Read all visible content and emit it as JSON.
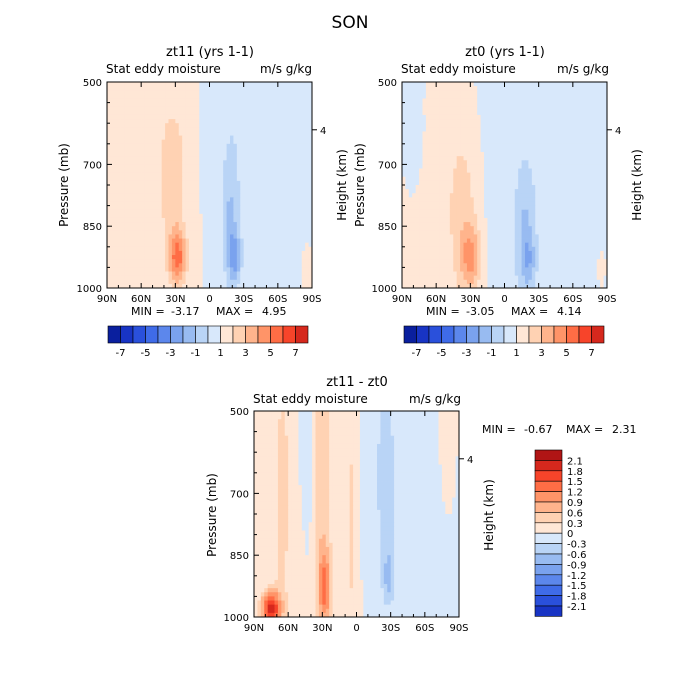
{
  "page_title": "SON",
  "palette_colors": {
    "pos": [
      "#ffe7d6",
      "#ffd2b3",
      "#ffb48c",
      "#ff9468",
      "#ff6d45",
      "#f7442a",
      "#d6281d",
      "#b01515",
      "#860b0b"
    ],
    "neg": [
      "#d8e8fb",
      "#b9d4f6",
      "#98bbf1",
      "#7aa2ee",
      "#5c87ec",
      "#3f6be8",
      "#2a50db",
      "#1834c4",
      "#0a1f9e"
    ],
    "frame": "#000000"
  },
  "chart_data": [
    {
      "type": "heatmap",
      "title": "zt11 (yrs 1-1)",
      "subtitle_left": "Stat eddy moisture",
      "subtitle_right": "m/s g/kg",
      "ylabel": "Pressure (mb)",
      "ylabel_right": "Height (km)",
      "x_ticks": [
        "90N",
        "60N",
        "30N",
        "0",
        "30S",
        "60S",
        "90S"
      ],
      "x_values": [
        90,
        60,
        30,
        0,
        -30,
        -60,
        -90
      ],
      "y_ticks": [
        "500",
        "700",
        "850",
        "1000"
      ],
      "y_values": [
        500,
        700,
        850,
        1000
      ],
      "y_right_ticks": [
        "4"
      ],
      "ylim": [
        500,
        1000
      ],
      "min_label": "MIN =",
      "min_value": "-3.17",
      "max_label": "MAX =",
      "max_value": "4.95",
      "features": [
        {
          "lat": 70,
          "p": 560,
          "slat": 12,
          "sp": 260,
          "amp": 0.8
        },
        {
          "lat": 40,
          "p": 740,
          "slat": 10,
          "sp": 220,
          "amp": 0.7
        },
        {
          "lat": 30,
          "p": 730,
          "slat": 7,
          "sp": 110,
          "amp": 1.5
        },
        {
          "lat": 28,
          "p": 925,
          "slat": 5,
          "sp": 45,
          "amp": 4.3
        },
        {
          "lat": 12,
          "p": 930,
          "slat": 5,
          "sp": 40,
          "amp": 0.7
        },
        {
          "lat": -20,
          "p": 640,
          "slat": 10,
          "sp": 200,
          "amp": -0.6
        },
        {
          "lat": -18,
          "p": 840,
          "slat": 5,
          "sp": 110,
          "amp": -1.7
        },
        {
          "lat": -22,
          "p": 925,
          "slat": 4,
          "sp": 45,
          "amp": -2.6
        },
        {
          "lat": 0,
          "p": 930,
          "slat": 4,
          "sp": 40,
          "amp": -1.0
        },
        {
          "lat": -55,
          "p": 760,
          "slat": 22,
          "sp": 350,
          "amp": -0.45
        },
        {
          "lat": -85,
          "p": 950,
          "slat": 3,
          "sp": 40,
          "amp": 0.5
        }
      ]
    },
    {
      "type": "heatmap",
      "title": "zt0 (yrs 1-1)",
      "subtitle_left": "Stat eddy moisture",
      "subtitle_right": "m/s g/kg",
      "ylabel": "Pressure (mb)",
      "ylabel_right": "Height (km)",
      "x_ticks": [
        "90N",
        "60N",
        "30N",
        "0",
        "30S",
        "60S",
        "90S"
      ],
      "x_values": [
        90,
        60,
        30,
        0,
        -30,
        -60,
        -90
      ],
      "y_ticks": [
        "500",
        "700",
        "850",
        "1000"
      ],
      "y_values": [
        500,
        700,
        850,
        1000
      ],
      "y_right_ticks": [
        "4"
      ],
      "ylim": [
        500,
        1000
      ],
      "min_label": "MIN =",
      "min_value": "-3.05",
      "max_label": "MAX =",
      "max_value": "4.14",
      "features": [
        {
          "lat": 55,
          "p": 760,
          "slat": 20,
          "sp": 220,
          "amp": 0.6
        },
        {
          "lat": 35,
          "p": 820,
          "slat": 10,
          "sp": 170,
          "amp": 1.2
        },
        {
          "lat": 30,
          "p": 925,
          "slat": 6,
          "sp": 55,
          "amp": 2.8
        },
        {
          "lat": 60,
          "p": 540,
          "slat": 6,
          "sp": 50,
          "amp": 0.4
        },
        {
          "lat": -18,
          "p": 880,
          "slat": 6,
          "sp": 120,
          "amp": -1.9
        },
        {
          "lat": -22,
          "p": 930,
          "slat": 4,
          "sp": 40,
          "amp": -1.4
        },
        {
          "lat": 0,
          "p": 700,
          "slat": 30,
          "sp": 300,
          "amp": -0.45
        },
        {
          "lat": -60,
          "p": 750,
          "slat": 25,
          "sp": 350,
          "amp": -0.5
        },
        {
          "lat": 75,
          "p": 620,
          "slat": 10,
          "sp": 200,
          "amp": -0.4
        },
        {
          "lat": -85,
          "p": 950,
          "slat": 3,
          "sp": 40,
          "amp": 0.5
        }
      ]
    },
    {
      "type": "heatmap",
      "title": "zt11 - zt0",
      "subtitle_left": "Stat eddy moisture",
      "subtitle_right": "m/s g/kg",
      "ylabel": "Pressure (mb)",
      "ylabel_right": "Height (km)",
      "x_ticks": [
        "90N",
        "60N",
        "30N",
        "0",
        "30S",
        "60S",
        "90S"
      ],
      "x_values": [
        90,
        60,
        30,
        0,
        -30,
        -60,
        -90
      ],
      "y_ticks": [
        "500",
        "700",
        "850",
        "1000"
      ],
      "y_values": [
        500,
        700,
        850,
        1000
      ],
      "y_right_ticks": [
        "4"
      ],
      "ylim": [
        500,
        1000
      ],
      "min_label": "MIN =",
      "min_value": "-0.67",
      "max_label": "MAX =",
      "max_value": "2.31",
      "features": [
        {
          "lat": 65,
          "p": 700,
          "slat": 6,
          "sp": 280,
          "amp": 0.4
        },
        {
          "lat": 30,
          "p": 700,
          "slat": 6,
          "sp": 260,
          "amp": 0.55
        },
        {
          "lat": 28,
          "p": 930,
          "slat": 4,
          "sp": 60,
          "amp": 1.1
        },
        {
          "lat": 75,
          "p": 980,
          "slat": 6,
          "sp": 30,
          "amp": 1.9
        },
        {
          "lat": 5,
          "p": 780,
          "slat": 4,
          "sp": 300,
          "amp": 0.35
        },
        {
          "lat": 50,
          "p": 850,
          "slat": 4,
          "sp": 150,
          "amp": 0.3
        },
        {
          "lat": 45,
          "p": 640,
          "slat": 4,
          "sp": 150,
          "amp": -0.35
        },
        {
          "lat": -25,
          "p": 650,
          "slat": 8,
          "sp": 250,
          "amp": -0.35
        },
        {
          "lat": -28,
          "p": 900,
          "slat": 3,
          "sp": 40,
          "amp": -0.6
        },
        {
          "lat": -60,
          "p": 760,
          "slat": 25,
          "sp": 300,
          "amp": -0.15
        },
        {
          "lat": -80,
          "p": 580,
          "slat": 5,
          "sp": 120,
          "amp": 0.3
        }
      ]
    }
  ],
  "colorbar_small": {
    "levels": [
      -8,
      -7,
      -6,
      -5,
      -4,
      -3,
      -2,
      -1,
      0,
      1,
      2,
      3,
      4,
      5,
      6,
      7,
      8
    ],
    "labels": [
      "-7",
      "-5",
      "-3",
      "-1",
      "1",
      "3",
      "5",
      "7"
    ]
  },
  "colorbar_diff": {
    "levels": [
      2.4,
      2.1,
      1.8,
      1.5,
      1.2,
      0.9,
      0.6,
      0.3,
      0,
      -0.3,
      -0.6,
      -0.9,
      -1.2,
      -1.5,
      -1.8,
      -2.1,
      -2.4
    ],
    "labels": [
      "2.1",
      "1.8",
      "1.5",
      "1.2",
      "0.9",
      "0.6",
      "0.3",
      "0",
      "-0.3",
      "-0.6",
      "-0.9",
      "-1.2",
      "-1.5",
      "-1.8",
      "-2.1"
    ]
  }
}
